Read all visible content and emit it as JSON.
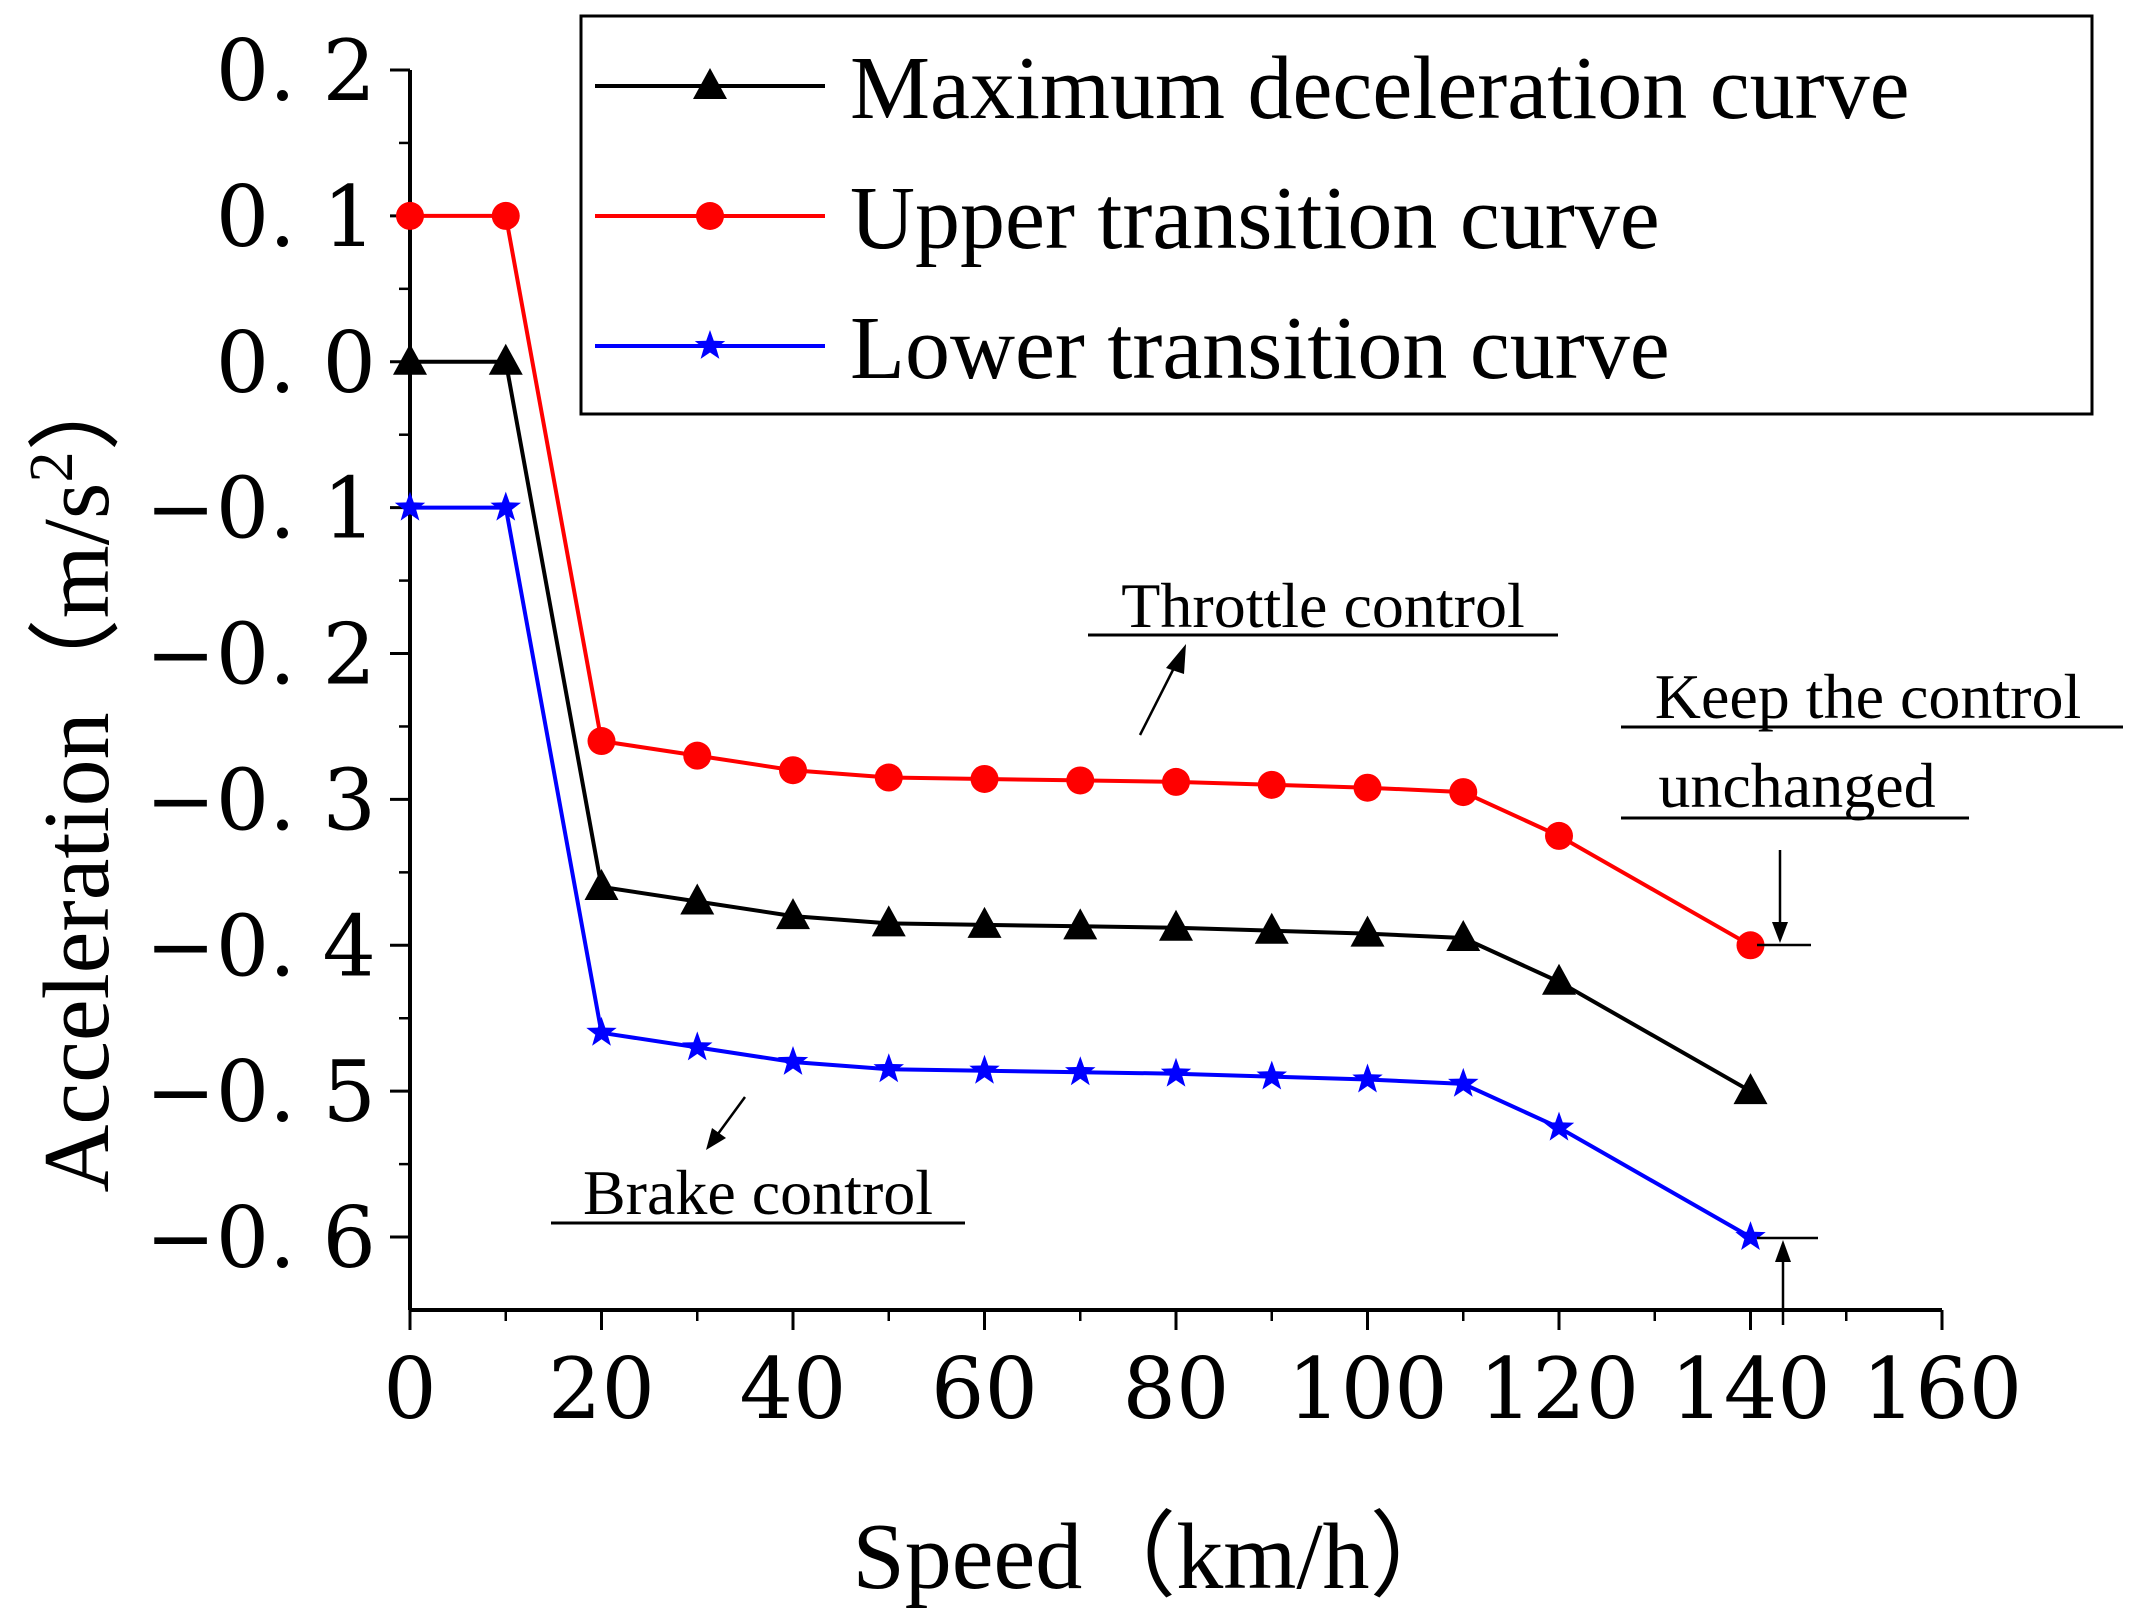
{
  "chart_data": {
    "type": "line",
    "xlabel": "Speed（km/h）",
    "ylabel_main": "Acceleration（m/s",
    "ylabel_sup": "2",
    "ylabel_close": "）",
    "xlim": [
      0,
      160
    ],
    "ylim": [
      -0.65,
      0.2
    ],
    "x_ticks": [
      0,
      20,
      40,
      60,
      80,
      100,
      120,
      140,
      160
    ],
    "x_tick_labels": [
      "0",
      "20",
      "40",
      "60",
      "80",
      "100",
      "120",
      "140",
      "160"
    ],
    "y_ticks": [
      0.2,
      0.1,
      0.0,
      -0.1,
      -0.2,
      -0.3,
      -0.4,
      -0.5,
      -0.6
    ],
    "y_tick_labels": [
      "0. 2",
      "0. 1",
      "0. 0",
      "−0. 1",
      "−0. 2",
      "−0. 3",
      "−0. 4",
      "−0. 5",
      "−0. 6"
    ],
    "grid": false,
    "legend_position": "top-right",
    "series": [
      {
        "name": "Maximum deceleration curve",
        "color": "#000000",
        "marker": "triangle",
        "x": [
          0,
          10,
          20,
          30,
          40,
          50,
          60,
          70,
          80,
          90,
          100,
          110,
          120,
          140
        ],
        "y": [
          0.0,
          0.0,
          -0.36,
          -0.37,
          -0.38,
          -0.385,
          -0.386,
          -0.387,
          -0.388,
          -0.39,
          -0.392,
          -0.395,
          -0.425,
          -0.5
        ]
      },
      {
        "name": "Upper transition curve",
        "color": "#ff0000",
        "marker": "circle",
        "x": [
          0,
          10,
          20,
          30,
          40,
          50,
          60,
          70,
          80,
          90,
          100,
          110,
          120,
          140
        ],
        "y": [
          0.1,
          0.1,
          -0.26,
          -0.27,
          -0.28,
          -0.285,
          -0.286,
          -0.287,
          -0.288,
          -0.29,
          -0.292,
          -0.295,
          -0.325,
          -0.4
        ]
      },
      {
        "name": "Lower transition curve",
        "color": "#0000ff",
        "marker": "star",
        "x": [
          0,
          10,
          20,
          30,
          40,
          50,
          60,
          70,
          80,
          90,
          100,
          110,
          120,
          140
        ],
        "y": [
          -0.1,
          -0.1,
          -0.46,
          -0.47,
          -0.48,
          -0.485,
          -0.486,
          -0.487,
          -0.488,
          -0.49,
          -0.492,
          -0.495,
          -0.525,
          -0.6
        ]
      }
    ],
    "annotations": {
      "throttle": "Throttle control",
      "brake": "Brake control",
      "keep_line1": "Keep the control",
      "keep_line2": " unchanged"
    }
  }
}
